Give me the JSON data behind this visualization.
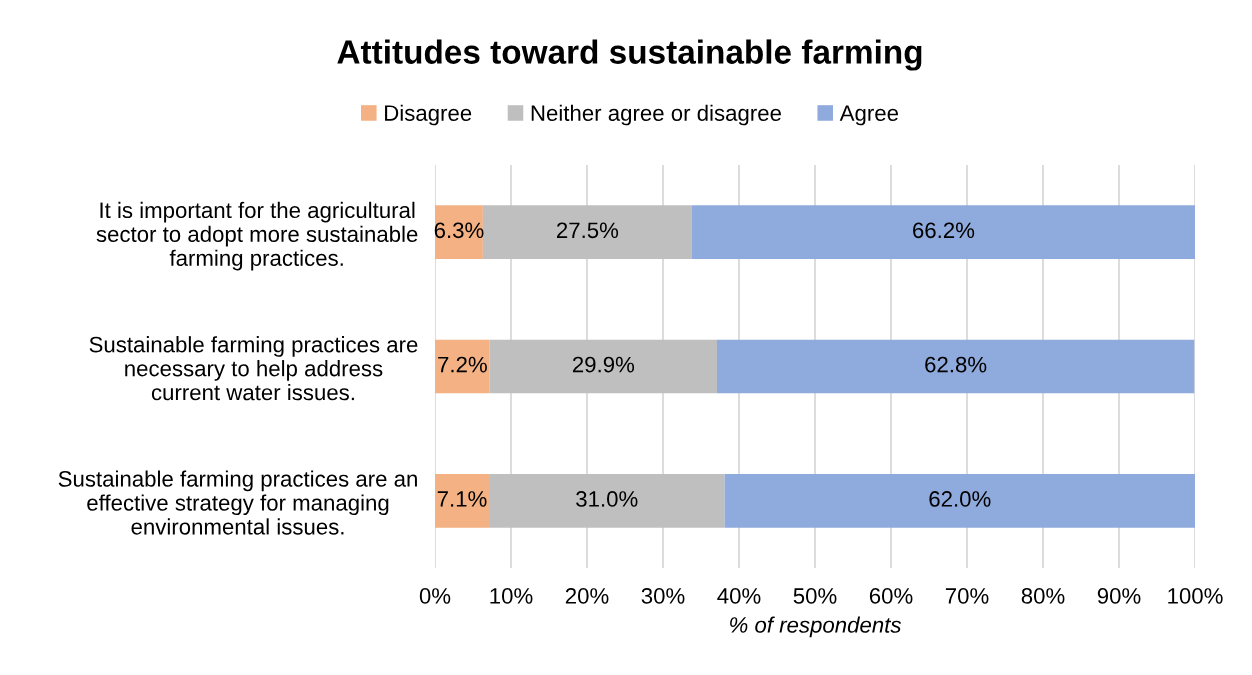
{
  "chart_data": {
    "type": "bar",
    "orientation": "horizontal",
    "stacked": true,
    "title": "Attitudes toward sustainable farming",
    "xlabel": "% of respondents",
    "categories": [
      "It is important for the agricultural\nsector to adopt more sustainable\nfarming practices.",
      "Sustainable farming practices are\nnecessary to help address\ncurrent water issues.",
      "Sustainable farming practices are an\neffective strategy for managing\nenvironmental issues."
    ],
    "series": [
      {
        "name": "Disagree",
        "color": "#f4b183",
        "values": [
          6.3,
          7.2,
          7.1
        ],
        "value_labels": [
          "6.3%",
          "7.2%",
          "7.1%"
        ]
      },
      {
        "name": "Neither agree or disagree",
        "color": "#bfbfbf",
        "values": [
          27.5,
          29.9,
          31.0
        ],
        "value_labels": [
          "27.5%",
          "29.9%",
          "31.0%"
        ]
      },
      {
        "name": "Agree",
        "color": "#8faadc",
        "values": [
          66.2,
          62.8,
          62.0
        ],
        "value_labels": [
          "66.2%",
          "62.8%",
          "62.0%"
        ]
      }
    ],
    "xlim": [
      0,
      100
    ],
    "xticks": [
      {
        "value": 0,
        "label": "0%"
      },
      {
        "value": 10,
        "label": "10%"
      },
      {
        "value": 20,
        "label": "20%"
      },
      {
        "value": 30,
        "label": "30%"
      },
      {
        "value": 40,
        "label": "40%"
      },
      {
        "value": 50,
        "label": "50%"
      },
      {
        "value": 60,
        "label": "60%"
      },
      {
        "value": 70,
        "label": "70%"
      },
      {
        "value": 80,
        "label": "80%"
      },
      {
        "value": 90,
        "label": "90%"
      },
      {
        "value": 100,
        "label": "100%"
      }
    ],
    "grid": "x",
    "legend": "top"
  }
}
